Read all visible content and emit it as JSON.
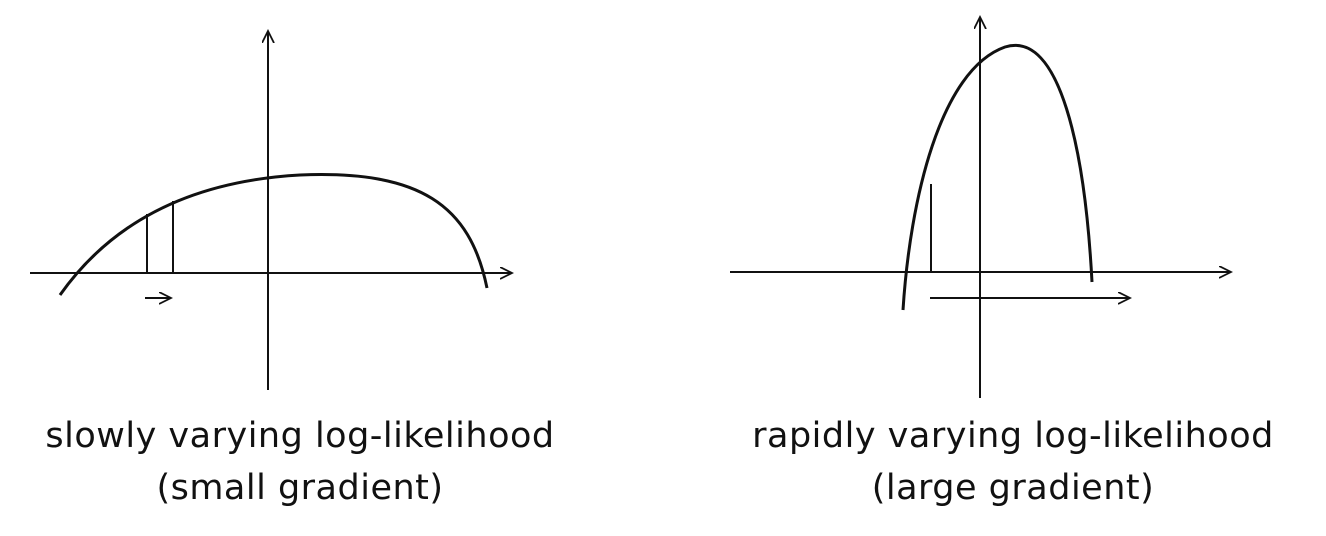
{
  "panels": [
    {
      "id": "slow",
      "caption_line1": "slowly  varying  log-likelihood",
      "caption_line2": "(small gradient)"
    },
    {
      "id": "rapid",
      "caption_line1": "rapidly  varying  log-likelihood",
      "caption_line2": "(large gradient)"
    }
  ],
  "colors": {
    "stroke": "#111111",
    "background": "#ffffff"
  }
}
